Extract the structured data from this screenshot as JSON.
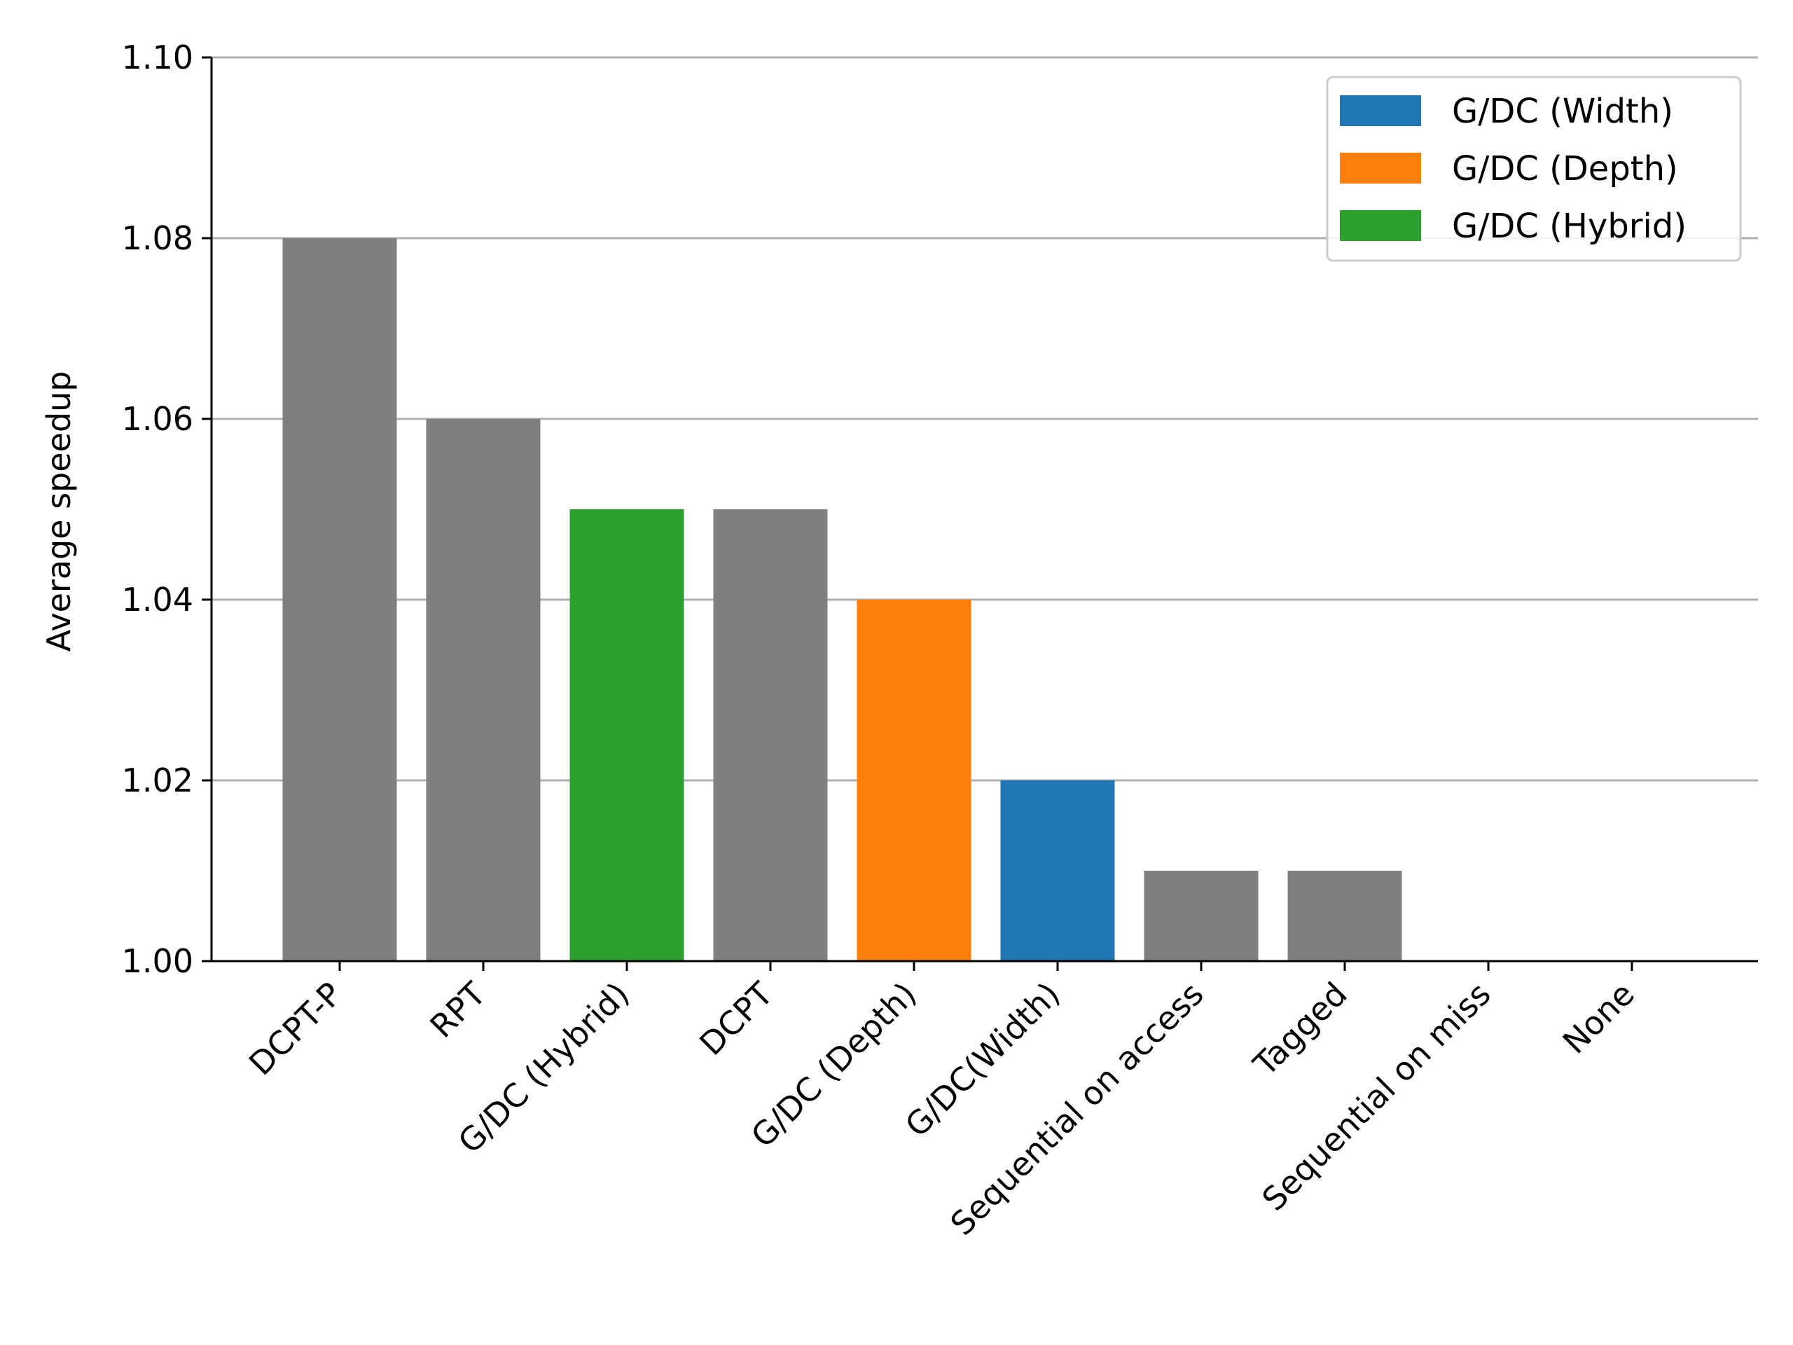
{
  "chart_data": {
    "type": "bar",
    "title": "",
    "xlabel": "",
    "ylabel": "Average speedup",
    "categories": [
      "DCPT-P",
      "RPT",
      "G/DC (Hybrid)",
      "DCPT",
      "G/DC (Depth)",
      "G/DC(Width)",
      "Sequential on access",
      "Tagged",
      "Sequential on miss",
      "None"
    ],
    "values": [
      1.08,
      1.06,
      1.05,
      1.05,
      1.04,
      1.02,
      1.01,
      1.01,
      1.0,
      1.0
    ],
    "bar_colors": [
      "#7f7f7f",
      "#7f7f7f",
      "#2ca02c",
      "#7f7f7f",
      "#ff7f0e",
      "#1f77b4",
      "#7f7f7f",
      "#7f7f7f",
      "#7f7f7f",
      "#7f7f7f"
    ],
    "ylim": [
      1.0,
      1.1
    ],
    "yticks": [
      "1.00",
      "1.02",
      "1.04",
      "1.06",
      "1.08",
      "1.10"
    ],
    "grid": "horizontal",
    "legend": {
      "position": "top-right",
      "entries": [
        {
          "label": "G/DC (Width)",
          "color": "#1f77b4"
        },
        {
          "label": "G/DC (Depth)",
          "color": "#ff7f0e"
        },
        {
          "label": "G/DC (Hybrid)",
          "color": "#2ca02c"
        }
      ]
    }
  }
}
